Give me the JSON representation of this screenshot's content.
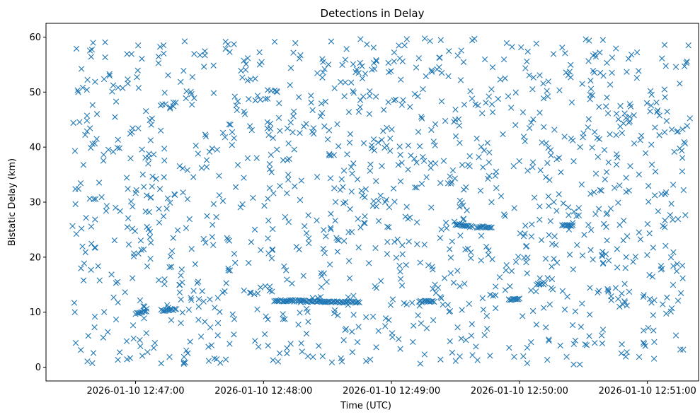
{
  "chart_data": {
    "type": "scatter",
    "title": "Detections in Delay",
    "xlabel": "Time (UTC)",
    "ylabel": "Bistatic Delay (km)",
    "x_axis_type": "datetime",
    "xlim": [
      "2026-01-10 12:46:18",
      "2026-01-10 12:51:24"
    ],
    "ylim": [
      -2.5,
      62.5
    ],
    "x_ticks": [
      "2026-01-10 12:47:00",
      "2026-01-10 12:48:00",
      "2026-01-10 12:49:00",
      "2026-01-10 12:50:00",
      "2026-01-10 12:51:00"
    ],
    "y_ticks": [
      0,
      10,
      20,
      30,
      40,
      50,
      60
    ],
    "grid": false,
    "legend": "none",
    "marker": "x",
    "color": "#1f77b4",
    "start_time": "2026-01-10 12:46:30",
    "end_time": "2026-01-10 12:51:20",
    "background_points": 1300,
    "tracks": [
      {
        "from": [
          "2026-01-10 12:47:00",
          9.8
        ],
        "to": [
          "2026-01-10 12:47:05",
          10.2
        ]
      },
      {
        "from": [
          "2026-01-10 12:47:12",
          10.3
        ],
        "to": [
          "2026-01-10 12:47:19",
          10.5
        ]
      },
      {
        "from": [
          "2026-01-10 12:48:05",
          12.1
        ],
        "to": [
          "2026-01-10 12:48:45",
          11.8
        ]
      },
      {
        "from": [
          "2026-01-10 12:49:13",
          11.9
        ],
        "to": [
          "2026-01-10 12:49:20",
          12.0
        ]
      },
      {
        "from": [
          "2026-01-10 12:49:30",
          26.0
        ],
        "to": [
          "2026-01-10 12:49:38",
          25.5
        ]
      },
      {
        "from": [
          "2026-01-10 12:49:40",
          25.5
        ],
        "to": [
          "2026-01-10 12:49:47",
          25.4
        ]
      },
      {
        "from": [
          "2026-01-10 12:49:55",
          12.3
        ],
        "to": [
          "2026-01-10 12:50:00",
          12.4
        ]
      },
      {
        "from": [
          "2026-01-10 12:50:20",
          25.8
        ],
        "to": [
          "2026-01-10 12:50:25",
          25.7
        ]
      },
      {
        "from": [
          "2026-01-10 12:50:08",
          15.0
        ],
        "to": [
          "2026-01-10 12:50:12",
          15.2
        ]
      }
    ]
  }
}
